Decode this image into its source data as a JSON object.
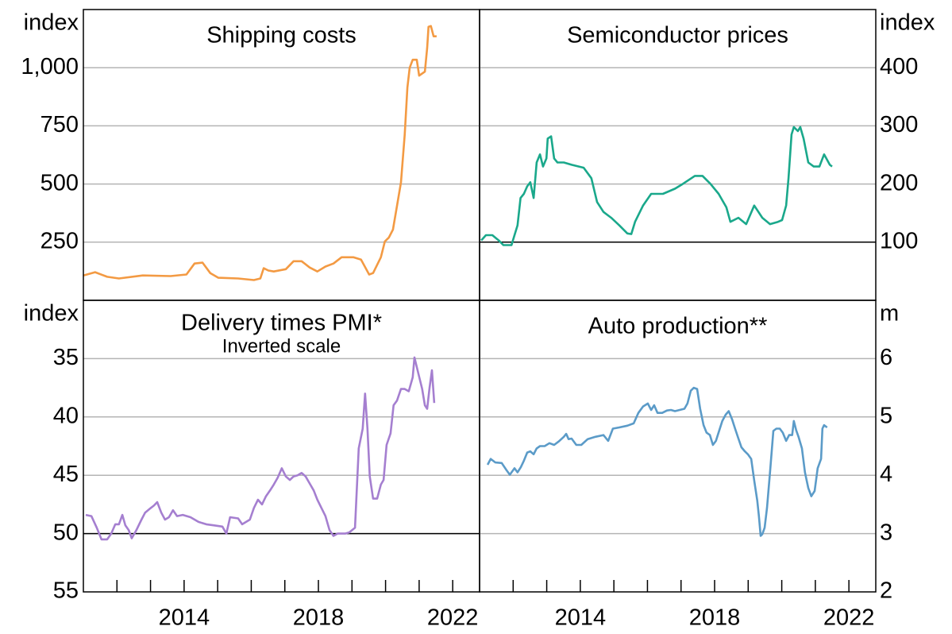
{
  "chart_data": [
    {
      "type": "line",
      "title": "Shipping costs",
      "y_label": "index",
      "y_axis_side": "left",
      "color": "#f39a43",
      "xlim": [
        2011,
        2022.8
      ],
      "ylim": [
        0,
        1250
      ],
      "yticks": [
        250,
        500,
        750,
        {
          "value": 1000,
          "label": "1,000"
        }
      ],
      "grid": true,
      "x": [
        2011.0,
        2011.35,
        2011.71,
        2012.06,
        2012.77,
        2013.6,
        2014.07,
        2014.31,
        2014.55,
        2014.78,
        2015.02,
        2015.61,
        2016.08,
        2016.27,
        2016.37,
        2016.51,
        2016.67,
        2017.03,
        2017.26,
        2017.5,
        2017.74,
        2017.97,
        2018.21,
        2018.45,
        2018.69,
        2019.04,
        2019.27,
        2019.51,
        2019.63,
        2019.86,
        2019.98,
        2020.1,
        2020.22,
        2020.34,
        2020.46,
        2020.57,
        2020.65,
        2020.72,
        2020.81,
        2020.93,
        2021.0,
        2021.17,
        2021.24,
        2021.28,
        2021.35,
        2021.43,
        2021.52
      ],
      "values": [
        107,
        121,
        101,
        94,
        107,
        104,
        111,
        158,
        162,
        117,
        97,
        94,
        87,
        94,
        138,
        128,
        124,
        134,
        168,
        168,
        141,
        124,
        145,
        158,
        185,
        185,
        175,
        111,
        117,
        185,
        253,
        270,
        304,
        406,
        507,
        711,
        915,
        1000,
        1034,
        1034,
        966,
        983,
        1085,
        1176,
        1179,
        1135,
        1135
      ]
    },
    {
      "type": "line",
      "title": "Semiconductor prices",
      "y_label": "index",
      "y_axis_side": "right",
      "color": "#1aa88b",
      "xlim": [
        2011,
        2022.8
      ],
      "ylim": [
        0,
        500
      ],
      "yticks": [
        100,
        200,
        300,
        400
      ],
      "grid": true,
      "reference_line": 100,
      "x": [
        2011.05,
        2011.19,
        2011.38,
        2011.57,
        2011.71,
        2011.95,
        2012.04,
        2012.13,
        2012.22,
        2012.32,
        2012.42,
        2012.51,
        2012.61,
        2012.7,
        2012.8,
        2012.89,
        2012.99,
        2013.03,
        2013.13,
        2013.22,
        2013.32,
        2013.51,
        2013.74,
        2014.1,
        2014.33,
        2014.5,
        2014.69,
        2014.92,
        2015.16,
        2015.4,
        2015.52,
        2015.63,
        2015.87,
        2016.11,
        2016.46,
        2016.82,
        2017.05,
        2017.41,
        2017.64,
        2017.88,
        2018.12,
        2018.35,
        2018.47,
        2018.71,
        2018.94,
        2019.18,
        2019.42,
        2019.65,
        2019.89,
        2020.01,
        2020.13,
        2020.2,
        2020.29,
        2020.36,
        2020.48,
        2020.55,
        2020.65,
        2020.79,
        2020.95,
        2021.12,
        2021.26,
        2021.43,
        2021.5
      ],
      "values": [
        103,
        112,
        112,
        103,
        95,
        95,
        112,
        129,
        176,
        183,
        196,
        203,
        176,
        237,
        251,
        230,
        244,
        278,
        282,
        244,
        237,
        237,
        233,
        228,
        210,
        169,
        152,
        142,
        129,
        115,
        114,
        135,
        163,
        183,
        183,
        192,
        200,
        214,
        214,
        200,
        183,
        160,
        135,
        142,
        131,
        163,
        142,
        131,
        135,
        138,
        163,
        210,
        285,
        298,
        291,
        298,
        278,
        237,
        230,
        230,
        251,
        233,
        230
      ]
    },
    {
      "type": "line",
      "title": "Delivery times PMI*",
      "subtitle": "Inverted scale",
      "y_label": "index",
      "y_axis_side": "left",
      "color": "#a57fd0",
      "xlim": [
        2011,
        2022.8
      ],
      "ylim": [
        30,
        55
      ],
      "inverted": true,
      "yticks": [
        35,
        40,
        45,
        50,
        55
      ],
      "grid": true,
      "reference_line": 50,
      "xticks": [
        2014,
        2018,
        2022
      ],
      "xminor_ticks": [
        2012,
        2013,
        2014,
        2015,
        2016,
        2017,
        2018,
        2019,
        2020,
        2021,
        2022
      ],
      "x": [
        2011.07,
        2011.24,
        2011.4,
        2011.54,
        2011.71,
        2011.83,
        2011.95,
        2012.06,
        2012.16,
        2012.25,
        2012.35,
        2012.44,
        2012.58,
        2012.73,
        2012.84,
        2013.01,
        2013.1,
        2013.2,
        2013.32,
        2013.43,
        2013.55,
        2013.67,
        2013.79,
        2013.96,
        2014.19,
        2014.43,
        2014.66,
        2014.9,
        2015.14,
        2015.26,
        2015.37,
        2015.61,
        2015.73,
        2015.96,
        2016.08,
        2016.2,
        2016.32,
        2016.44,
        2016.56,
        2016.67,
        2016.79,
        2016.91,
        2017.03,
        2017.15,
        2017.26,
        2017.38,
        2017.5,
        2017.62,
        2017.74,
        2017.86,
        2017.97,
        2018.09,
        2018.21,
        2018.33,
        2018.45,
        2018.57,
        2018.8,
        2018.92,
        2019.09,
        2019.2,
        2019.32,
        2019.39,
        2019.46,
        2019.53,
        2019.63,
        2019.75,
        2019.86,
        2019.94,
        2020.03,
        2020.15,
        2020.24,
        2020.34,
        2020.46,
        2020.57,
        2020.69,
        2020.81,
        2020.86,
        2020.98,
        2021.09,
        2021.17,
        2021.24,
        2021.31,
        2021.38,
        2021.45
      ],
      "values": [
        48.4,
        48.5,
        49.5,
        50.5,
        50.5,
        50.0,
        49.2,
        49.2,
        48.4,
        49.3,
        49.7,
        50.4,
        49.7,
        48.8,
        48.2,
        47.8,
        47.6,
        47.3,
        48.2,
        48.8,
        48.6,
        48.0,
        48.5,
        48.4,
        48.6,
        49.0,
        49.2,
        49.3,
        49.4,
        50.0,
        48.6,
        48.7,
        49.2,
        48.8,
        47.8,
        47.1,
        47.5,
        46.8,
        46.3,
        45.8,
        45.2,
        44.4,
        45.1,
        45.4,
        45.1,
        45.0,
        44.8,
        45.1,
        45.7,
        46.3,
        47.1,
        47.8,
        48.5,
        49.7,
        50.2,
        50.0,
        50.0,
        49.9,
        49.5,
        42.7,
        41.0,
        38.0,
        41.0,
        45.1,
        47.0,
        47.0,
        45.8,
        45.4,
        42.4,
        41.4,
        39.0,
        38.6,
        37.6,
        37.6,
        37.8,
        36.6,
        34.9,
        36.3,
        37.6,
        39.0,
        39.3,
        37.5,
        36.0,
        38.8
      ]
    },
    {
      "type": "line",
      "title": "Auto production**",
      "y_label": "m",
      "y_axis_side": "right",
      "color": "#5b9bc8",
      "xlim": [
        2011,
        2022.8
      ],
      "ylim": [
        2,
        7
      ],
      "yticks": [
        2,
        3,
        4,
        5,
        6
      ],
      "grid": true,
      "xticks": [
        2014,
        2018,
        2022
      ],
      "xminor_ticks": [
        2012,
        2013,
        2014,
        2015,
        2016,
        2017,
        2018,
        2019,
        2020,
        2021,
        2022
      ],
      "x": [
        2011.24,
        2011.33,
        2011.47,
        2011.66,
        2011.8,
        2011.9,
        2012.04,
        2012.13,
        2012.23,
        2012.32,
        2012.42,
        2012.51,
        2012.61,
        2012.7,
        2012.8,
        2012.94,
        2013.08,
        2013.22,
        2013.36,
        2013.51,
        2013.58,
        2013.65,
        2013.74,
        2013.88,
        2014.03,
        2014.22,
        2014.45,
        2014.69,
        2014.83,
        2014.97,
        2015.16,
        2015.4,
        2015.59,
        2015.73,
        2015.87,
        2016.01,
        2016.11,
        2016.2,
        2016.3,
        2016.44,
        2016.58,
        2016.7,
        2016.82,
        2016.96,
        2017.1,
        2017.19,
        2017.29,
        2017.38,
        2017.48,
        2017.57,
        2017.67,
        2017.76,
        2017.86,
        2017.95,
        2018.04,
        2018.14,
        2018.23,
        2018.33,
        2018.42,
        2018.52,
        2018.61,
        2018.71,
        2018.8,
        2018.9,
        2018.99,
        2019.09,
        2019.18,
        2019.27,
        2019.32,
        2019.37,
        2019.42,
        2019.49,
        2019.56,
        2019.65,
        2019.75,
        2019.84,
        2019.94,
        2020.03,
        2020.13,
        2020.22,
        2020.31,
        2020.36,
        2020.43,
        2020.5,
        2020.6,
        2020.69,
        2020.79,
        2020.88,
        2020.98,
        2021.07,
        2021.17,
        2021.21,
        2021.26,
        2021.35
      ],
      "values": [
        4.18,
        4.28,
        4.22,
        4.21,
        4.09,
        4.01,
        4.12,
        4.05,
        4.14,
        4.25,
        4.39,
        4.41,
        4.36,
        4.46,
        4.5,
        4.5,
        4.55,
        4.52,
        4.58,
        4.66,
        4.71,
        4.62,
        4.63,
        4.52,
        4.52,
        4.62,
        4.66,
        4.69,
        4.59,
        4.8,
        4.82,
        4.85,
        4.89,
        5.07,
        5.18,
        5.23,
        5.12,
        5.2,
        5.07,
        5.07,
        5.11,
        5.12,
        5.1,
        5.12,
        5.14,
        5.23,
        5.45,
        5.5,
        5.48,
        5.14,
        4.86,
        4.73,
        4.69,
        4.52,
        4.59,
        4.77,
        4.93,
        5.04,
        5.1,
        4.96,
        4.8,
        4.63,
        4.48,
        4.41,
        4.36,
        4.28,
        3.91,
        3.57,
        3.3,
        2.96,
        2.99,
        3.1,
        3.44,
        4.05,
        4.76,
        4.8,
        4.8,
        4.73,
        4.59,
        4.69,
        4.69,
        4.93,
        4.77,
        4.66,
        4.46,
        4.05,
        3.78,
        3.64,
        3.73,
        4.12,
        4.28,
        4.8,
        4.86,
        4.82
      ]
    }
  ]
}
